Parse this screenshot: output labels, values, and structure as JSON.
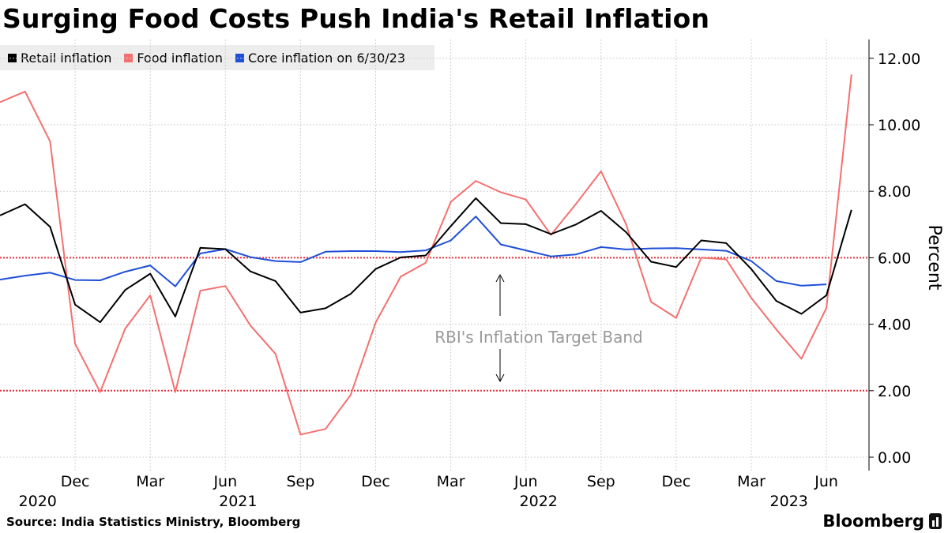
{
  "title": "Surging Food Costs Push India's Retail Inflation",
  "legend": [
    {
      "label": "Retail inflation",
      "color": "#000000"
    },
    {
      "label": "Food inflation",
      "color": "#f47070"
    },
    {
      "label": "Core inflation on 6/30/23",
      "color": "#1f4fd8"
    }
  ],
  "source": "Source: India Statistics Ministry, Bloomberg",
  "brand": "Bloomberg",
  "chart_data": {
    "type": "line",
    "ylabel": "Percent",
    "ylim": [
      -0.3,
      12.6
    ],
    "yticks": [
      "0.00",
      "2.00",
      "4.00",
      "6.00",
      "8.00",
      "10.00",
      "12.00"
    ],
    "x_months": [
      "Sep 2020",
      "Oct 2020",
      "Nov 2020",
      "Dec 2020",
      "Jan 2021",
      "Feb 2021",
      "Mar 2021",
      "Apr 2021",
      "May 2021",
      "Jun 2021",
      "Jul 2021",
      "Aug 2021",
      "Sep 2021",
      "Oct 2021",
      "Nov 2021",
      "Dec 2021",
      "Jan 2022",
      "Feb 2022",
      "Mar 2022",
      "Apr 2022",
      "May 2022",
      "Jun 2022",
      "Jul 2022",
      "Aug 2022",
      "Sep 2022",
      "Oct 2022",
      "Nov 2022",
      "Dec 2022",
      "Jan 2023",
      "Feb 2023",
      "Mar 2023",
      "Apr 2023",
      "May 2023",
      "Jun 2023",
      "Jul 2023"
    ],
    "xticks": [
      {
        "label": "Dec",
        "index": 3
      },
      {
        "label": "Mar",
        "index": 6
      },
      {
        "label": "Jun",
        "index": 9
      },
      {
        "label": "Sep",
        "index": 12
      },
      {
        "label": "Dec",
        "index": 15
      },
      {
        "label": "Mar",
        "index": 18
      },
      {
        "label": "Jun",
        "index": 21
      },
      {
        "label": "Sep",
        "index": 24
      },
      {
        "label": "Dec",
        "index": 27
      },
      {
        "label": "Mar",
        "index": 30
      },
      {
        "label": "Jun",
        "index": 33
      }
    ],
    "year_labels": [
      {
        "label": "2020",
        "index": 1
      },
      {
        "label": "2021",
        "index": 9
      },
      {
        "label": "2022",
        "index": 21
      },
      {
        "label": "2023",
        "index": 31
      }
    ],
    "series": [
      {
        "name": "Retail inflation",
        "color": "#000000",
        "values": [
          7.27,
          7.61,
          6.93,
          4.59,
          4.06,
          5.03,
          5.52,
          4.23,
          6.3,
          6.26,
          5.59,
          5.3,
          4.35,
          4.48,
          4.91,
          5.66,
          6.01,
          6.07,
          6.95,
          7.79,
          7.04,
          7.01,
          6.71,
          7.0,
          7.41,
          6.77,
          5.88,
          5.72,
          6.52,
          6.44,
          5.66,
          4.7,
          4.31,
          4.87,
          7.44
        ]
      },
      {
        "name": "Food inflation",
        "color": "#f47070",
        "values": [
          10.68,
          11.0,
          9.5,
          3.41,
          1.96,
          3.87,
          4.87,
          1.96,
          5.01,
          5.15,
          3.96,
          3.11,
          0.68,
          0.85,
          1.87,
          4.05,
          5.43,
          5.85,
          7.68,
          8.31,
          7.97,
          7.75,
          6.69,
          7.62,
          8.6,
          7.01,
          4.67,
          4.19,
          6.0,
          5.95,
          4.79,
          3.84,
          2.96,
          4.49,
          11.51
        ]
      },
      {
        "name": "Core inflation on 6/30/23",
        "color": "#1f4fd8",
        "values": [
          5.34,
          5.46,
          5.55,
          5.33,
          5.32,
          5.58,
          5.77,
          5.14,
          6.13,
          6.26,
          6.02,
          5.9,
          5.87,
          6.18,
          6.2,
          6.2,
          6.17,
          6.22,
          6.52,
          7.24,
          6.4,
          6.22,
          6.04,
          6.1,
          6.32,
          6.25,
          6.28,
          6.29,
          6.25,
          6.21,
          5.9,
          5.3,
          5.16,
          5.2,
          null
        ]
      }
    ],
    "reference_lines": [
      {
        "value": 6,
        "color": "#e8303a",
        "style": "dotted"
      },
      {
        "value": 2,
        "color": "#e8303a",
        "style": "dotted"
      }
    ],
    "annotation": "RBI's Inflation Target Band"
  }
}
